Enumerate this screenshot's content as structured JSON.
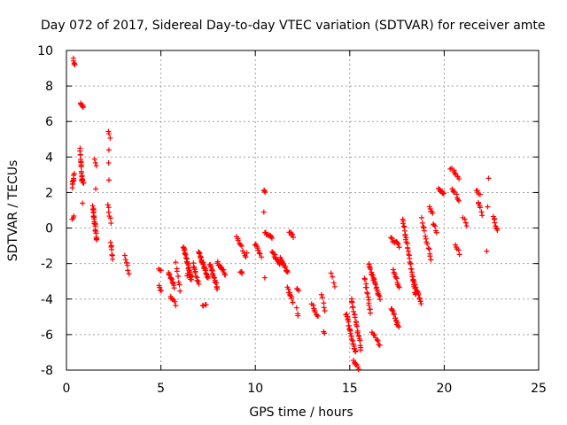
{
  "chart_data": {
    "type": "scatter",
    "title": "Day 072 of 2017, Sidereal Day-to-day VTEC variation (SDTVAR) for receiver amte",
    "xlabel": "GPS time / hours",
    "ylabel": "SDTVAR / TECUs",
    "xlim": [
      0,
      25
    ],
    "ylim": [
      -8,
      10
    ],
    "xticks": [
      0,
      5,
      10,
      15,
      20,
      25
    ],
    "yticks": [
      -8,
      -6,
      -4,
      -2,
      0,
      2,
      4,
      6,
      8,
      10
    ],
    "grid": true,
    "marker": "+",
    "color": "#ff0000",
    "segments": [
      [
        0.3,
        0.4,
        2.3,
        3.0,
        10
      ],
      [
        0.32,
        0.4,
        0.5,
        0.7,
        3
      ],
      [
        0.35,
        0.45,
        9.5,
        9.2,
        5
      ],
      [
        0.7,
        0.85,
        4.5,
        2.6,
        18
      ],
      [
        0.75,
        0.9,
        7.0,
        6.8,
        6
      ],
      [
        0.8,
        0.9,
        2.7,
        2.5,
        4
      ],
      [
        0.85,
        0.85,
        1.4,
        1.4,
        1
      ],
      [
        1.4,
        1.6,
        1.2,
        -0.7,
        24
      ],
      [
        1.5,
        1.6,
        3.9,
        3.5,
        3
      ],
      [
        1.55,
        1.55,
        2.2,
        2.2,
        1
      ],
      [
        2.2,
        2.3,
        5.4,
        5.1,
        3
      ],
      [
        2.25,
        2.25,
        4.4,
        3.6,
        2
      ],
      [
        2.25,
        2.25,
        2.7,
        2.7,
        1
      ],
      [
        2.2,
        2.35,
        1.4,
        0.3,
        6
      ],
      [
        2.35,
        2.45,
        -0.8,
        -1.8,
        7
      ],
      [
        3.1,
        3.3,
        -1.6,
        -2.5,
        6
      ],
      [
        4.9,
        5.0,
        -2.3,
        -2.4,
        3
      ],
      [
        4.9,
        5.0,
        -3.2,
        -3.6,
        4
      ],
      [
        5.4,
        5.7,
        -2.5,
        -3.3,
        14
      ],
      [
        5.5,
        5.8,
        -3.9,
        -4.3,
        6
      ],
      [
        5.8,
        6.0,
        -2.0,
        -3.5,
        7
      ],
      [
        6.2,
        6.6,
        -1.0,
        -2.9,
        26
      ],
      [
        6.4,
        6.6,
        -2.6,
        -2.8,
        5
      ],
      [
        6.7,
        7.0,
        -2.0,
        -3.2,
        12
      ],
      [
        7.0,
        7.5,
        -1.3,
        -2.8,
        26
      ],
      [
        7.2,
        7.4,
        -4.3,
        -4.4,
        4
      ],
      [
        7.6,
        8.0,
        -2.0,
        -3.5,
        20
      ],
      [
        8.0,
        8.4,
        -1.9,
        -2.6,
        14
      ],
      [
        9.2,
        9.3,
        -2.4,
        -2.6,
        4
      ],
      [
        9.0,
        9.5,
        -0.4,
        -1.6,
        10
      ],
      [
        9.5,
        9.6,
        -1.4,
        -1.4,
        1
      ],
      [
        10.0,
        10.3,
        -0.9,
        -1.6,
        8
      ],
      [
        10.5,
        10.9,
        -0.2,
        -0.6,
        10
      ],
      [
        10.45,
        10.5,
        2.2,
        2.0,
        3
      ],
      [
        10.45,
        10.45,
        0.9,
        0.9,
        1
      ],
      [
        10.5,
        10.5,
        -2.8,
        -2.8,
        1
      ],
      [
        10.9,
        11.3,
        -1.4,
        -2.0,
        14
      ],
      [
        11.3,
        11.7,
        -1.7,
        -2.5,
        14
      ],
      [
        11.8,
        12.0,
        -0.2,
        -0.5,
        6
      ],
      [
        11.7,
        12.0,
        -3.4,
        -4.2,
        10
      ],
      [
        12.2,
        12.3,
        -3.4,
        -3.5,
        3
      ],
      [
        12.2,
        12.25,
        -4.5,
        -5.0,
        3
      ],
      [
        13.0,
        13.3,
        -4.3,
        -5.0,
        8
      ],
      [
        13.5,
        13.7,
        -3.8,
        -4.6,
        5
      ],
      [
        13.6,
        13.65,
        -5.8,
        -5.9,
        2
      ],
      [
        14.0,
        14.2,
        -2.5,
        -3.3,
        4
      ],
      [
        14.8,
        15.3,
        -4.8,
        -7.0,
        26
      ],
      [
        15.1,
        15.6,
        -4.0,
        -6.8,
        22
      ],
      [
        15.2,
        15.5,
        -7.4,
        -8.0,
        8
      ],
      [
        15.8,
        16.1,
        -2.8,
        -4.8,
        14
      ],
      [
        16.0,
        16.6,
        -2.0,
        -4.0,
        24
      ],
      [
        16.2,
        16.6,
        -5.8,
        -6.6,
        8
      ],
      [
        17.2,
        17.6,
        -0.6,
        -1.0,
        10
      ],
      [
        17.3,
        17.6,
        -2.3,
        -3.4,
        10
      ],
      [
        17.2,
        17.6,
        -4.5,
        -5.6,
        14
      ],
      [
        17.8,
        18.5,
        0.5,
        -3.8,
        34
      ],
      [
        18.3,
        18.8,
        -2.8,
        -4.2,
        16
      ],
      [
        18.8,
        19.3,
        0.5,
        -1.8,
        14
      ],
      [
        19.2,
        19.4,
        1.2,
        0.8,
        5
      ],
      [
        19.4,
        19.6,
        0.3,
        -0.2,
        5
      ],
      [
        19.7,
        20.0,
        2.2,
        1.9,
        8
      ],
      [
        20.3,
        20.5,
        3.4,
        3.2,
        3
      ],
      [
        20.5,
        20.8,
        3.2,
        2.8,
        6
      ],
      [
        20.4,
        20.8,
        2.2,
        1.6,
        8
      ],
      [
        20.6,
        20.8,
        -1.0,
        -1.4,
        5
      ],
      [
        21.0,
        21.2,
        0.6,
        0.2,
        4
      ],
      [
        21.7,
        21.9,
        2.1,
        1.9,
        4
      ],
      [
        21.8,
        22.0,
        1.5,
        0.8,
        6
      ],
      [
        22.3,
        22.4,
        2.8,
        2.8,
        1
      ],
      [
        22.3,
        22.3,
        1.2,
        1.2,
        1
      ],
      [
        22.25,
        22.25,
        -1.3,
        -1.3,
        1
      ],
      [
        22.6,
        22.8,
        0.7,
        -0.2,
        8
      ]
    ]
  }
}
